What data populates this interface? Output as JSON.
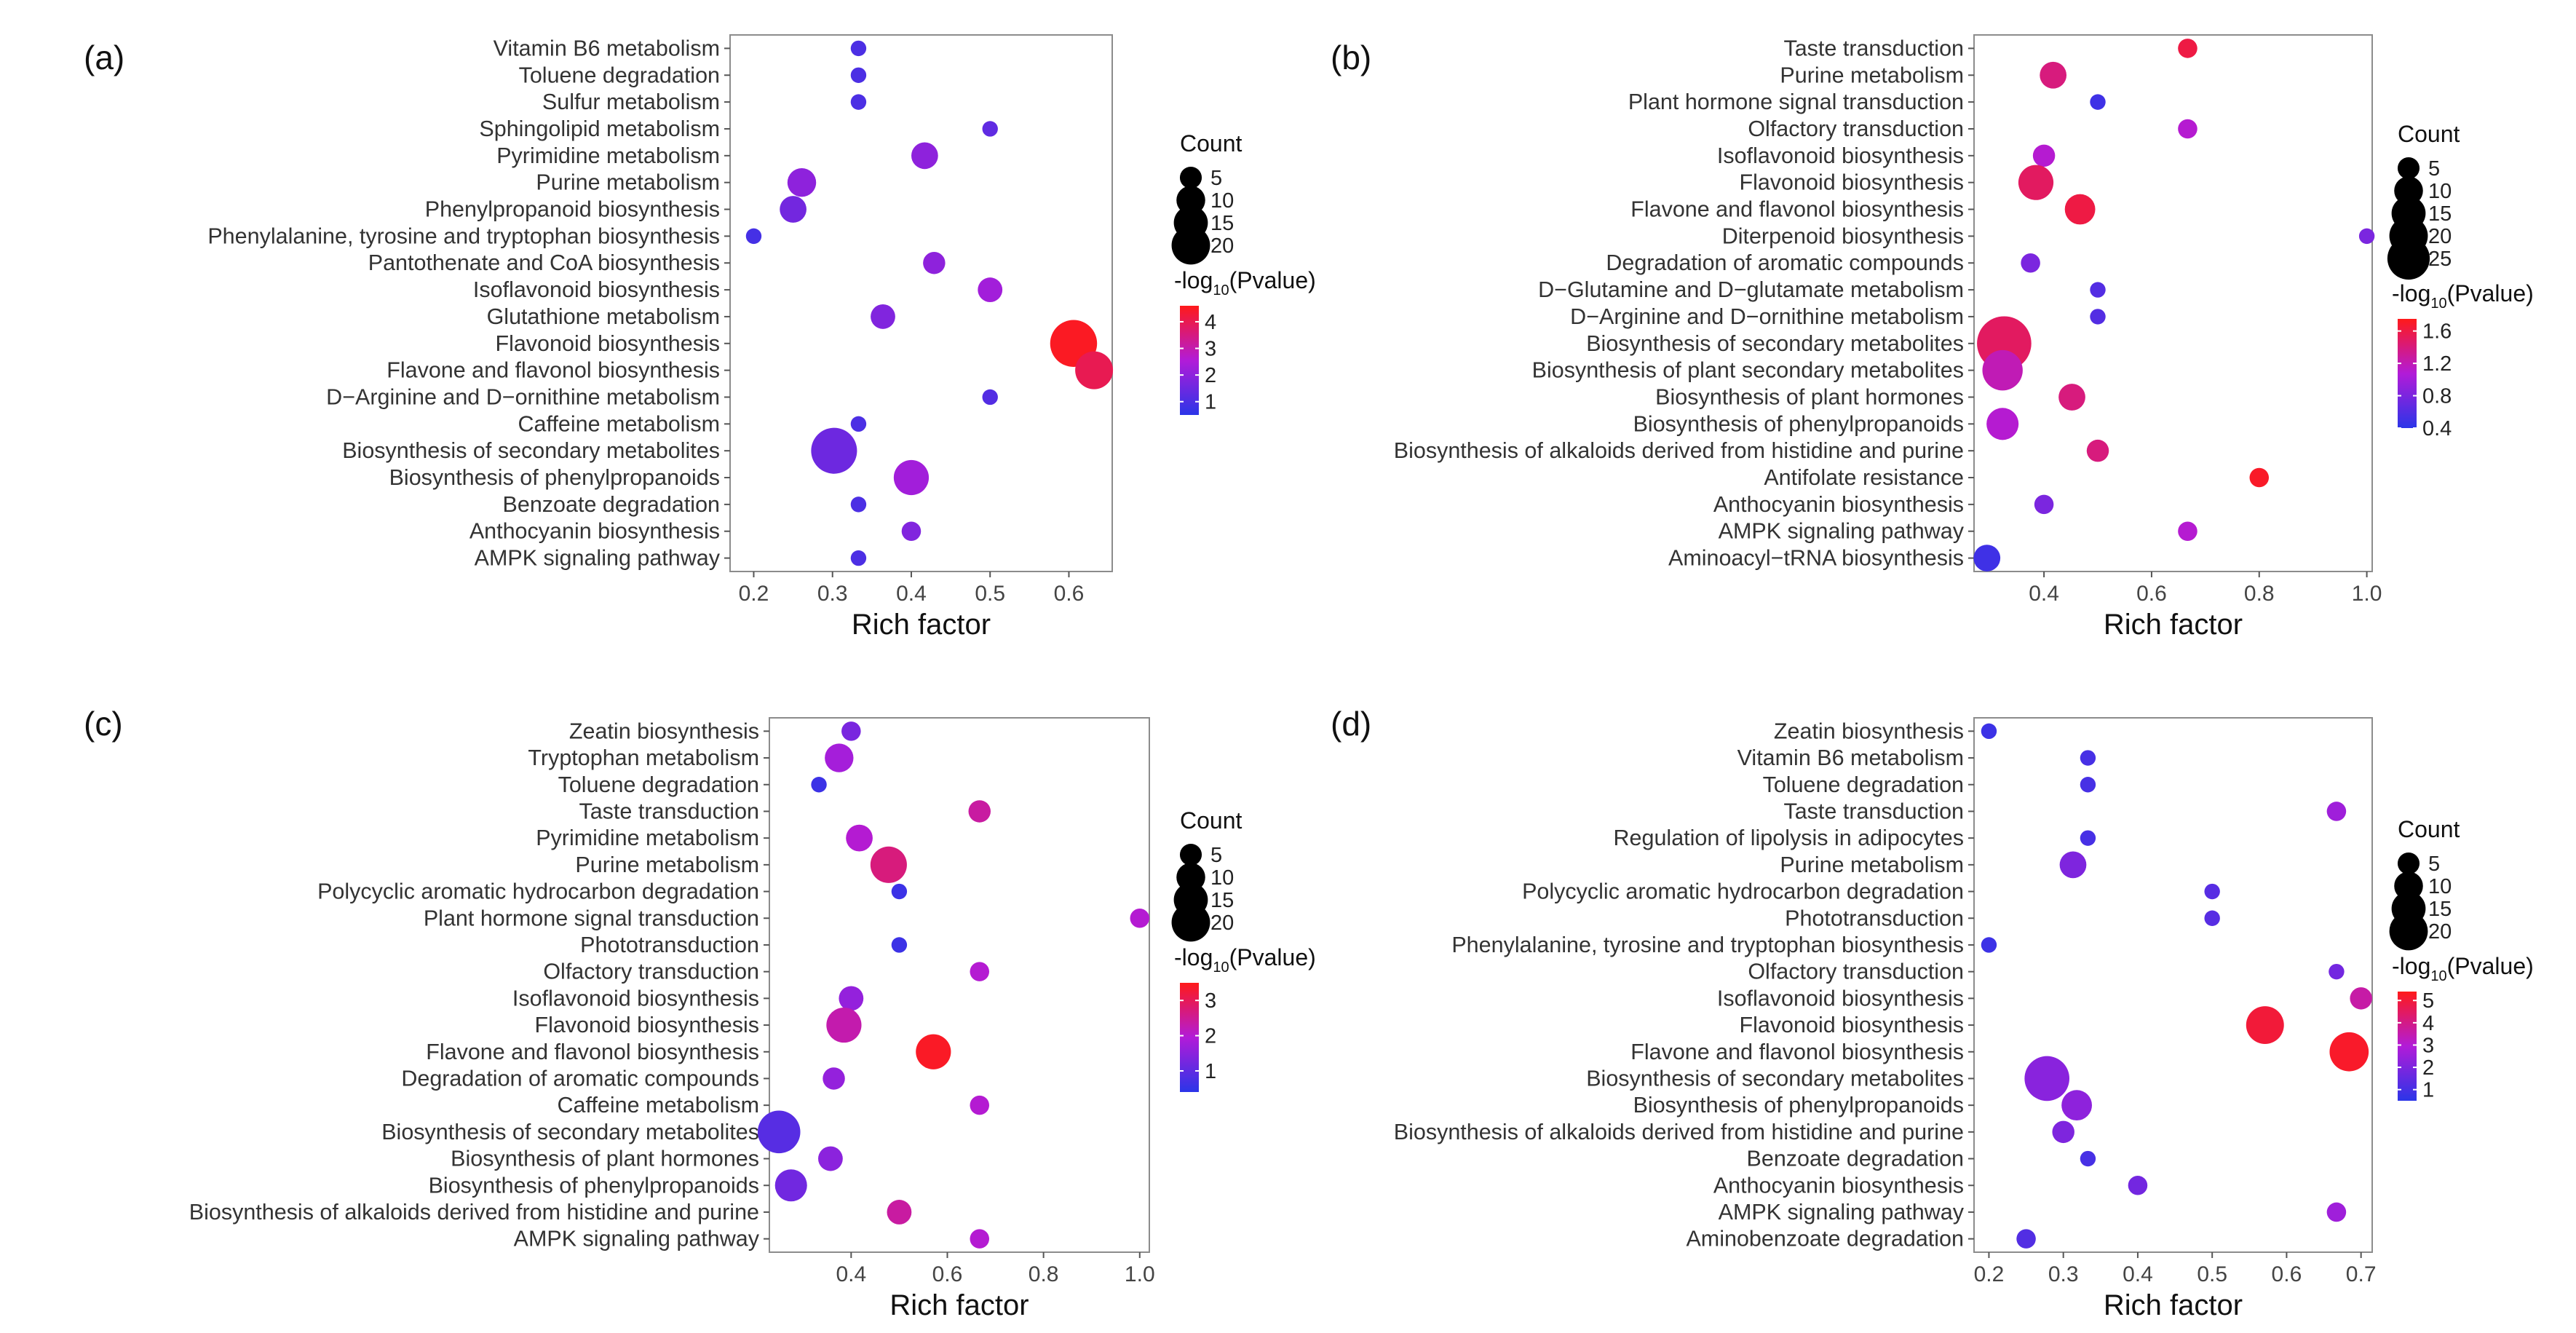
{
  "chart_data": [
    {
      "panel": "(a)",
      "type": "scatter",
      "xlabel": "Rich factor",
      "xlim": [
        0.17,
        0.655
      ],
      "xticks": [
        0.2,
        0.3,
        0.4,
        0.5,
        0.6
      ],
      "pathways": [
        "Vitamin B6 metabolism",
        "Toluene degradation",
        "Sulfur metabolism",
        "Sphingolipid metabolism",
        "Pyrimidine metabolism",
        "Purine metabolism",
        "Phenylpropanoid biosynthesis",
        "Phenylalanine, tyrosine and tryptophan biosynthesis",
        "Pantothenate and CoA biosynthesis",
        "Isoflavonoid biosynthesis",
        "Glutathione metabolism",
        "Flavonoid biosynthesis",
        "Flavone and flavonol biosynthesis",
        "D−Arginine and D−ornithine metabolism",
        "Caffeine metabolism",
        "Biosynthesis of secondary metabolites",
        "Biosynthesis of phenylpropanoids",
        "Benzoate degradation",
        "Anthocyanin biosynthesis",
        "AMPK signaling pathway"
      ],
      "rich_factor": [
        0.333,
        0.333,
        0.333,
        0.5,
        0.417,
        0.261,
        0.25,
        0.2,
        0.429,
        0.5,
        0.364,
        0.606,
        0.632,
        0.5,
        0.333,
        0.302,
        0.4,
        0.333,
        0.4,
        0.333
      ],
      "count": [
        1,
        1,
        1,
        1,
        5,
        6,
        5,
        1,
        3,
        4,
        4,
        20,
        12,
        1,
        1,
        19,
        10,
        1,
        2,
        1
      ],
      "neg_log10_p": [
        1.0,
        1.0,
        1.0,
        1.3,
        2.0,
        2.0,
        1.6,
        0.9,
        2.0,
        2.3,
        1.8,
        4.5,
        4.0,
        1.1,
        1.0,
        1.5,
        2.3,
        1.0,
        1.8,
        1.0
      ],
      "size_legend": {
        "title": "Count",
        "values": [
          5,
          10,
          15,
          20
        ]
      },
      "color_legend": {
        "title_prefix": "-log",
        "title_sub": "10",
        "title_suffix": "(Pvalue)",
        "min": 0.5,
        "max": 4.6,
        "ticks": [
          1,
          2,
          3,
          4
        ]
      }
    },
    {
      "panel": "(b)",
      "type": "scatter",
      "xlabel": "Rich factor",
      "xlim": [
        0.27,
        1.01
      ],
      "xticks": [
        0.4,
        0.6,
        0.8,
        1.0
      ],
      "xtick_labels": [
        "0.4",
        "0.6",
        "0.8",
        "1.0"
      ],
      "pathways": [
        "Taste transduction",
        "Purine metabolism",
        "Plant hormone signal transduction",
        "Olfactory transduction",
        "Isoflavonoid biosynthesis",
        "Flavonoid biosynthesis",
        "Flavone and flavonol biosynthesis",
        "Diterpenoid biosynthesis",
        "Degradation of aromatic compounds",
        "D−Glutamine and D−glutamate metabolism",
        "D−Arginine and D−ornithine metabolism",
        "Biosynthesis of secondary metabolites",
        "Biosynthesis of plant secondary metabolites",
        "Biosynthesis of plant hormones",
        "Biosynthesis of phenylpropanoids",
        "Biosynthesis of alkaloids derived from histidine and purine",
        "Antifolate resistance",
        "Anthocyanin biosynthesis",
        "AMPK signaling pathway",
        "Aminoacyl−tRNA biosynthesis"
      ],
      "rich_factor": [
        0.667,
        0.417,
        0.5,
        0.667,
        0.4,
        0.385,
        0.467,
        1.0,
        0.375,
        0.5,
        0.5,
        0.326,
        0.323,
        0.452,
        0.323,
        0.5,
        0.8,
        0.4,
        0.667,
        0.294
      ],
      "count": [
        2,
        5,
        1,
        2,
        3,
        10,
        7,
        1,
        2,
        1,
        1,
        28,
        14,
        5,
        8,
        3,
        2,
        2,
        2,
        5
      ],
      "neg_log10_p": [
        1.6,
        1.4,
        0.5,
        1.1,
        1.1,
        1.5,
        1.6,
        0.8,
        0.8,
        0.6,
        0.6,
        1.5,
        1.2,
        1.4,
        1.1,
        1.4,
        1.7,
        0.8,
        1.1,
        0.5
      ],
      "size_legend": {
        "title": "Count",
        "values": [
          5,
          10,
          15,
          20,
          25
        ]
      },
      "color_legend": {
        "title_prefix": "-log",
        "title_sub": "10",
        "title_suffix": "(Pvalue)",
        "min": 0.4,
        "max": 1.75,
        "ticks": [
          0.4,
          0.8,
          1.2,
          1.6
        ]
      }
    },
    {
      "panel": "(c)",
      "type": "scatter",
      "xlabel": "Rich factor",
      "xlim": [
        0.23,
        1.02
      ],
      "xticks": [
        0.4,
        0.6,
        0.8,
        1.0
      ],
      "xtick_labels": [
        "0.4",
        "0.6",
        "0.8",
        "1.0"
      ],
      "pathways": [
        "Zeatin biosynthesis",
        "Tryptophan metabolism",
        "Toluene degradation",
        "Taste transduction",
        "Pyrimidine metabolism",
        "Purine metabolism",
        "Polycyclic aromatic hydrocarbon degradation",
        "Plant hormone signal transduction",
        "Phototransduction",
        "Olfactory transduction",
        "Isoflavonoid biosynthesis",
        "Flavonoid biosynthesis",
        "Flavone and flavonol biosynthesis",
        "Degradation of aromatic compounds",
        "Caffeine metabolism",
        "Biosynthesis of secondary metabolites",
        "Biosynthesis of plant hormones",
        "Biosynthesis of phenylpropanoids",
        "Biosynthesis of alkaloids derived from histidine and purine",
        "AMPK signaling pathway"
      ],
      "rich_factor": [
        0.4,
        0.375,
        0.333,
        0.667,
        0.417,
        0.478,
        0.5,
        1.0,
        0.5,
        0.667,
        0.4,
        0.385,
        0.571,
        0.364,
        0.667,
        0.25,
        0.357,
        0.275,
        0.5,
        0.667
      ],
      "count": [
        2,
        6,
        1,
        3,
        5,
        11,
        1,
        2,
        1,
        2,
        4,
        10,
        10,
        3,
        2,
        16,
        4,
        8,
        4,
        2
      ],
      "neg_log10_p": [
        1.3,
        1.8,
        0.6,
        2.4,
        2.0,
        2.7,
        0.6,
        2.0,
        0.6,
        2.0,
        1.6,
        2.3,
        3.4,
        1.6,
        2.0,
        0.9,
        1.5,
        1.2,
        2.4,
        2.0
      ],
      "size_legend": {
        "title": "Count",
        "values": [
          5,
          10,
          15,
          20
        ]
      },
      "color_legend": {
        "title_prefix": "-log",
        "title_sub": "10",
        "title_suffix": "(Pvalue)",
        "min": 0.4,
        "max": 3.5,
        "ticks": [
          1,
          2,
          3
        ]
      }
    },
    {
      "panel": "(d)",
      "type": "scatter",
      "xlabel": "Rich factor",
      "xlim": [
        0.18,
        0.715
      ],
      "xticks": [
        0.2,
        0.3,
        0.4,
        0.5,
        0.6,
        0.7
      ],
      "pathways": [
        "Zeatin biosynthesis",
        "Vitamin B6 metabolism",
        "Toluene degradation",
        "Taste transduction",
        "Regulation of lipolysis in adipocytes",
        "Purine metabolism",
        "Polycyclic aromatic hydrocarbon degradation",
        "Phototransduction",
        "Phenylalanine, tyrosine and tryptophan biosynthesis",
        "Olfactory transduction",
        "Isoflavonoid biosynthesis",
        "Flavonoid biosynthesis",
        "Flavone and flavonol biosynthesis",
        "Biosynthesis of secondary metabolites",
        "Biosynthesis of phenylpropanoids",
        "Biosynthesis of alkaloids derived from histidine and purine",
        "Benzoate degradation",
        "Anthocyanin biosynthesis",
        "AMPK signaling pathway",
        "Aminobenzoate degradation"
      ],
      "rich_factor": [
        0.2,
        0.333,
        0.333,
        0.667,
        0.333,
        0.313,
        0.5,
        0.5,
        0.2,
        0.667,
        0.7,
        0.571,
        0.684,
        0.278,
        0.318,
        0.3,
        0.333,
        0.4,
        0.667,
        0.25
      ],
      "count": [
        1,
        1,
        1,
        2,
        1,
        5,
        1,
        1,
        1,
        1,
        3,
        12,
        13,
        18,
        7,
        3,
        1,
        2,
        2,
        2
      ],
      "neg_log10_p": [
        0.8,
        1.0,
        1.0,
        2.6,
        1.0,
        2.0,
        1.3,
        1.3,
        0.8,
        1.8,
        3.6,
        5.0,
        5.2,
        2.2,
        2.3,
        2.0,
        1.0,
        1.8,
        2.6,
        1.2
      ],
      "size_legend": {
        "title": "Count",
        "values": [
          5,
          10,
          15,
          20
        ]
      },
      "color_legend": {
        "title_prefix": "-log",
        "title_sub": "10",
        "title_suffix": "(Pvalue)",
        "min": 0.5,
        "max": 5.4,
        "ticks": [
          1,
          2,
          3,
          4,
          5
        ]
      }
    }
  ]
}
